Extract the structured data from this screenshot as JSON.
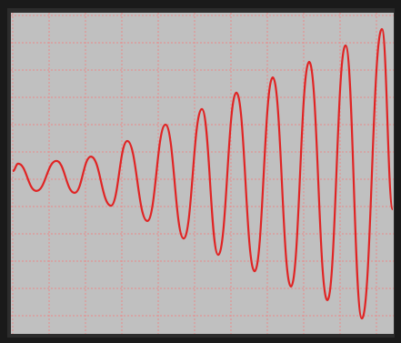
{
  "chart_data": {
    "type": "line",
    "x": [
      0,
      0.15,
      0.65,
      1.2,
      1.7,
      2.15,
      2.7,
      3.15,
      3.7,
      4.2,
      4.7,
      5.2,
      5.65,
      6.15,
      6.65,
      7.15,
      7.65,
      8.15,
      8.65,
      9.15,
      9.6,
      10.15,
      10.45
    ],
    "series": [
      {
        "color": "#e02424",
        "values": [
          0.3,
          0.57,
          -0.43,
          0.67,
          -0.5,
          0.83,
          -0.97,
          1.4,
          -1.53,
          2,
          -2.17,
          2.57,
          -2.77,
          3.17,
          -3.37,
          3.73,
          -3.93,
          4.3,
          -4.43,
          4.9,
          -5.1,
          5.5,
          -1.1
        ]
      }
    ],
    "xlim": [
      0,
      10.5
    ],
    "ylim": [
      -5.6,
      6
    ],
    "xticks": [
      0,
      1,
      2,
      3,
      4,
      5,
      6,
      7,
      8,
      9,
      10
    ],
    "yticks": [
      -5,
      -4,
      -3,
      -2,
      -1,
      0,
      1,
      2,
      3,
      4,
      5,
      6
    ],
    "grid": true,
    "grid_color": "#e88a8a",
    "background": "#c0c0c0"
  }
}
